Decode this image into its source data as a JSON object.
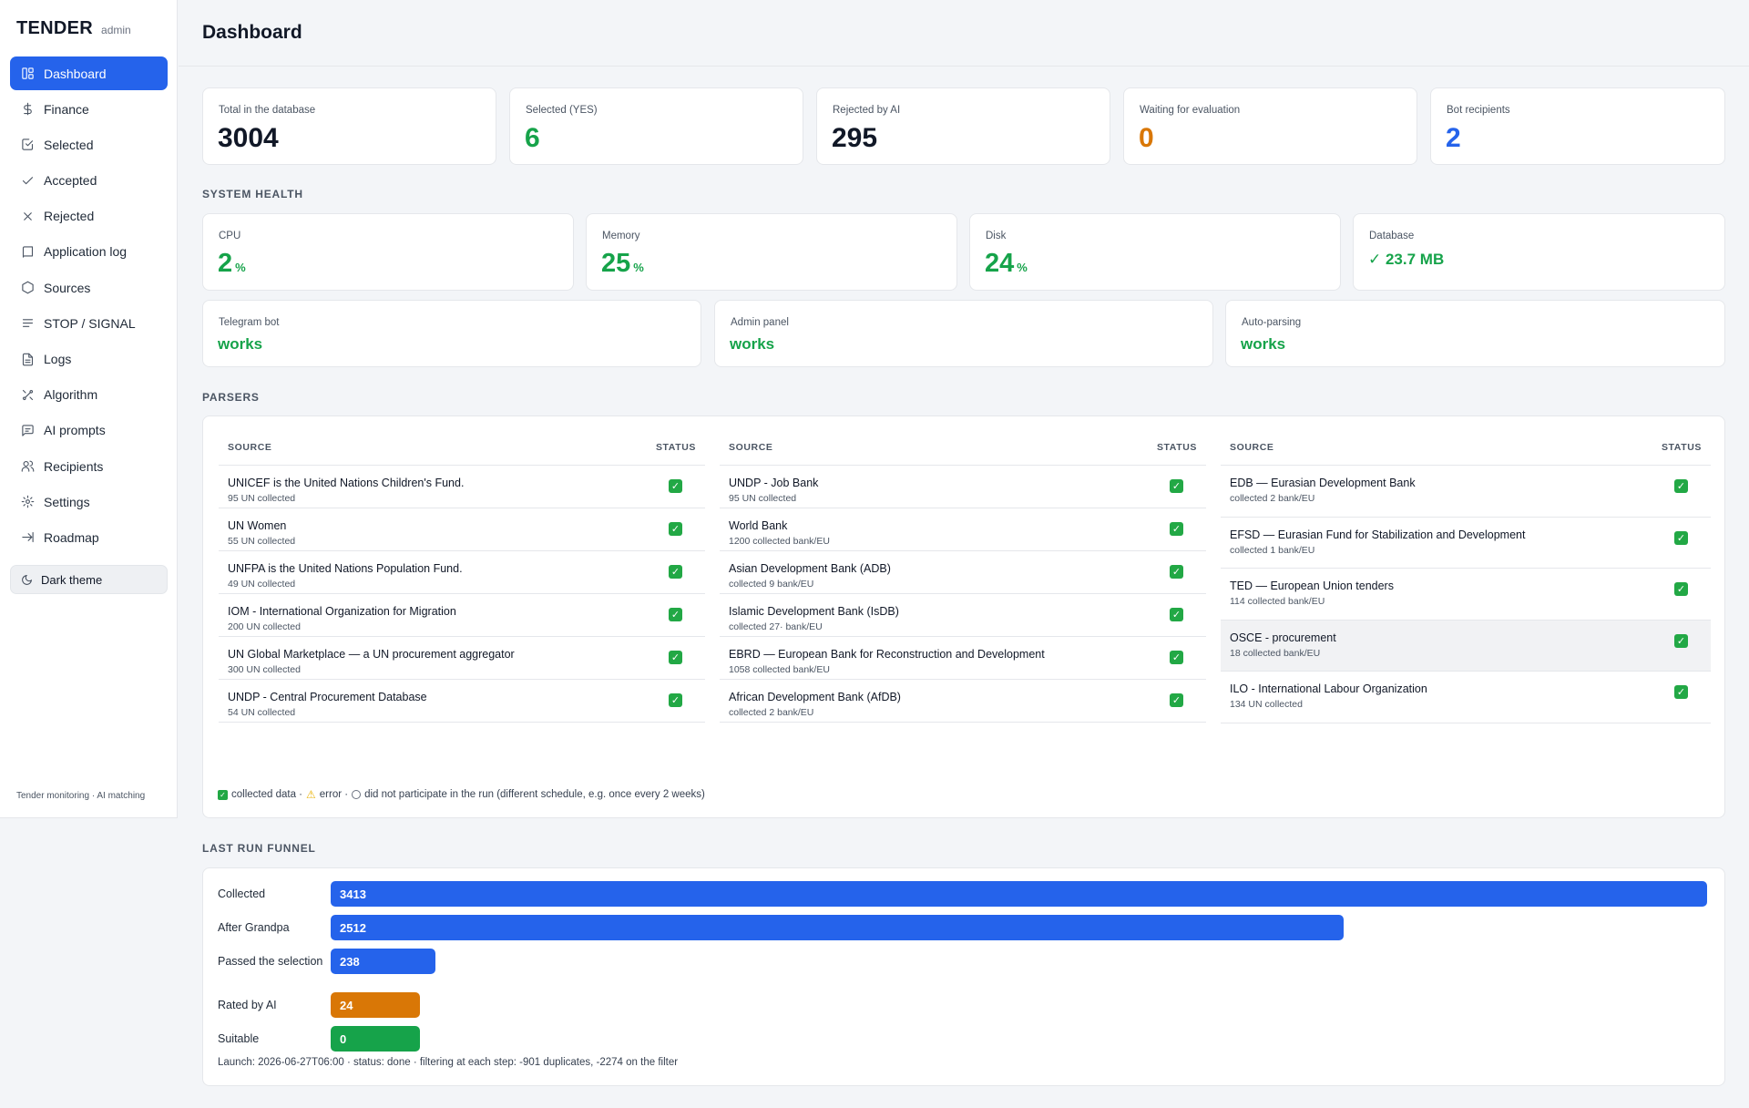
{
  "app": {
    "name": "TENDER",
    "role": "admin",
    "footer": "Tender monitoring · AI matching"
  },
  "sidebar": {
    "items": [
      {
        "label": "Dashboard",
        "icon": "dashboard-icon",
        "active": true
      },
      {
        "label": "Finance",
        "icon": "dollar-icon"
      },
      {
        "label": "Selected",
        "icon": "check-square-icon"
      },
      {
        "label": "Accepted",
        "icon": "check-icon"
      },
      {
        "label": "Rejected",
        "icon": "x-icon"
      },
      {
        "label": "Application log",
        "icon": "book-icon"
      },
      {
        "label": "Sources",
        "icon": "hexagon-icon"
      },
      {
        "label": "STOP / SIGNAL",
        "icon": "lines-icon"
      },
      {
        "label": "Logs",
        "icon": "file-icon"
      },
      {
        "label": "Algorithm",
        "icon": "algorithm-icon"
      },
      {
        "label": "AI prompts",
        "icon": "message-icon"
      },
      {
        "label": "Recipients",
        "icon": "users-icon"
      },
      {
        "label": "Settings",
        "icon": "gear-icon"
      },
      {
        "label": "Roadmap",
        "icon": "arrow-right-icon"
      }
    ],
    "theme_button": "Dark theme"
  },
  "header": {
    "title": "Dashboard"
  },
  "stats": [
    {
      "label": "Total in the database",
      "value": "3004",
      "color": "#111827"
    },
    {
      "label": "Selected (YES)",
      "value": "6",
      "color": "#16a34a"
    },
    {
      "label": "Rejected by AI",
      "value": "295",
      "color": "#111827"
    },
    {
      "label": "Waiting for evaluation",
      "value": "0",
      "color": "#d97706"
    },
    {
      "label": "Bot recipients",
      "value": "2",
      "color": "#2563eb"
    }
  ],
  "health": {
    "title": "SYSTEM HEALTH",
    "cpu": {
      "label": "CPU",
      "value": "2",
      "unit": "%"
    },
    "memory": {
      "label": "Memory",
      "value": "25",
      "unit": "%"
    },
    "disk": {
      "label": "Disk",
      "value": "24",
      "unit": "%"
    },
    "database": {
      "label": "Database",
      "value": "✓ 23.7 MB"
    },
    "telegram": {
      "label": "Telegram bot",
      "value": "works"
    },
    "admin": {
      "label": "Admin panel",
      "value": "works"
    },
    "autoparse": {
      "label": "Auto-parsing",
      "value": "works"
    }
  },
  "parsers": {
    "title": "PARSERS",
    "col_source": "SOURCE",
    "col_status": "STATUS",
    "columns": [
      [
        {
          "name": "UNICEF is the United Nations Children's Fund.",
          "sub": "95 UN collected"
        },
        {
          "name": "UN Women",
          "sub": "55 UN collected"
        },
        {
          "name": "UNFPA is the United Nations Population Fund.",
          "sub": "49 UN collected"
        },
        {
          "name": "IOM - International Organization for Migration",
          "sub": "200 UN collected"
        },
        {
          "name": "UN Global Marketplace — a UN procurement aggregator",
          "sub": "300 UN collected"
        },
        {
          "name": "UNDP - Central Procurement Database",
          "sub": "54 UN collected"
        }
      ],
      [
        {
          "name": "UNDP - Job Bank",
          "sub": "95 UN collected"
        },
        {
          "name": "World Bank",
          "sub": "1200 collected bank/EU"
        },
        {
          "name": "Asian Development Bank (ADB)",
          "sub": "collected 9 bank/EU"
        },
        {
          "name": "Islamic Development Bank (IsDB)",
          "sub": "collected 27· bank/EU"
        },
        {
          "name": "EBRD — European Bank for Reconstruction and Development",
          "sub": "1058 collected bank/EU"
        },
        {
          "name": "African Development Bank (AfDB)",
          "sub": "collected 2 bank/EU"
        }
      ],
      [
        {
          "name": "EDB — Eurasian Development Bank",
          "sub": "collected 2 bank/EU"
        },
        {
          "name": "EFSD — Eurasian Fund for Stabilization and Development",
          "sub": "collected 1 bank/EU"
        },
        {
          "name": "TED — European Union tenders",
          "sub": "114 collected bank/EU"
        },
        {
          "name": "OSCE - procurement",
          "sub": "18 collected bank/EU",
          "highlight": true
        },
        {
          "name": "ILO - International Labour Organization",
          "sub": "134 UN collected"
        }
      ]
    ],
    "legend": {
      "collected": "collected data ·",
      "error": "error ·",
      "skipped": "did not participate in the run (different schedule, e.g. once every 2 weeks)"
    }
  },
  "funnel": {
    "title": "LAST RUN FUNNEL",
    "max": 3413,
    "rows": [
      {
        "label": "Collected",
        "value": 3413,
        "text": "3413",
        "color": "#2563eb"
      },
      {
        "label": "After Grandpa",
        "value": 2512,
        "text": "2512",
        "color": "#2563eb"
      },
      {
        "label": "Passed the selection",
        "value": 238,
        "text": "238",
        "color": "#2563eb"
      },
      {
        "label": "Rated by AI",
        "value": 24,
        "text": "24",
        "color": "#d97706"
      },
      {
        "label": "Suitable",
        "value": 0,
        "text": "0",
        "color": "#16a34a"
      }
    ],
    "note": "Launch: 2026-06-27T06:00 · status: done · filtering at each step: -901 duplicates, -2274 on the filter"
  }
}
